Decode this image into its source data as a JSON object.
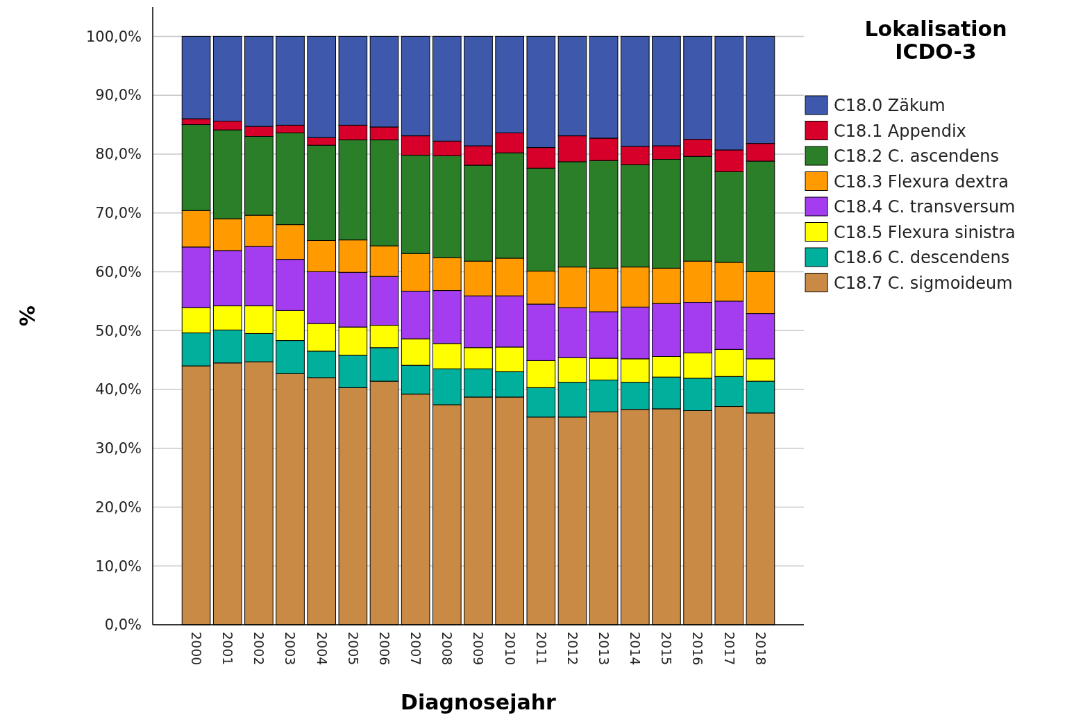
{
  "chart_data": {
    "type": "bar",
    "stacked": true,
    "xlabel": "Diagnosejahr",
    "ylabel": "%",
    "legend_title": "Lokalisation\nICDO-3",
    "legend": "right",
    "grid": "y",
    "categories": [
      "2000",
      "2001",
      "2002",
      "2003",
      "2004",
      "2005",
      "2006",
      "2007",
      "2008",
      "2009",
      "2010",
      "2011",
      "2012",
      "2013",
      "2014",
      "2015",
      "2016",
      "2017",
      "2018"
    ],
    "ylim": [
      0,
      105
    ],
    "yticks": [
      {
        "value": 0,
        "label": "0,0%"
      },
      {
        "value": 10,
        "label": "10,0%"
      },
      {
        "value": 20,
        "label": "20,0%"
      },
      {
        "value": 30,
        "label": "30,0%"
      },
      {
        "value": 40,
        "label": "40,0%"
      },
      {
        "value": 50,
        "label": "50,0%"
      },
      {
        "value": 60,
        "label": "60,0%"
      },
      {
        "value": 70,
        "label": "70,0%"
      },
      {
        "value": 80,
        "label": "80,0%"
      },
      {
        "value": 90,
        "label": "90,0%"
      },
      {
        "value": 100,
        "label": "100,0%"
      }
    ],
    "series": [
      {
        "name": "C18.7 C. sigmoideum",
        "color": "#c98a45",
        "values": [
          44.0,
          44.5,
          44.7,
          42.7,
          42.0,
          40.3,
          41.4,
          39.2,
          37.4,
          38.7,
          38.7,
          35.3,
          35.3,
          36.2,
          36.6,
          36.7,
          36.4,
          37.1,
          36.0
        ]
      },
      {
        "name": "C18.6 C. descendens",
        "color": "#00b09c",
        "values": [
          5.6,
          5.6,
          4.8,
          5.6,
          4.5,
          5.5,
          5.7,
          4.9,
          6.1,
          4.8,
          4.3,
          5.0,
          5.9,
          5.4,
          4.6,
          5.4,
          5.5,
          5.1,
          5.4
        ]
      },
      {
        "name": "C18.5 Flexura sinistra",
        "color": "#ffff00",
        "values": [
          4.3,
          4.1,
          4.7,
          5.1,
          4.7,
          4.8,
          3.8,
          4.5,
          4.3,
          3.6,
          4.2,
          4.6,
          4.2,
          3.7,
          4.0,
          3.5,
          4.3,
          4.6,
          3.8
        ]
      },
      {
        "name": "C18.4 C. transversum",
        "color": "#a43cf0",
        "values": [
          10.3,
          9.4,
          10.1,
          8.7,
          8.8,
          9.3,
          8.3,
          8.1,
          9.0,
          8.8,
          8.7,
          9.6,
          8.5,
          7.9,
          8.8,
          9.0,
          8.6,
          8.2,
          7.7
        ]
      },
      {
        "name": "C18.3 Flexura dextra",
        "color": "#ff9a00",
        "values": [
          6.2,
          5.4,
          5.3,
          5.9,
          5.3,
          5.5,
          5.2,
          6.4,
          5.6,
          5.9,
          6.4,
          5.6,
          6.9,
          7.4,
          6.8,
          6.0,
          7.0,
          6.6,
          7.1
        ]
      },
      {
        "name": "C18.2 C. ascendens",
        "color": "#2a7f28",
        "values": [
          14.6,
          15.1,
          13.4,
          15.6,
          16.2,
          17.0,
          18.0,
          16.7,
          17.3,
          16.3,
          17.9,
          17.5,
          17.9,
          18.3,
          17.4,
          18.5,
          17.8,
          15.4,
          18.8
        ]
      },
      {
        "name": "C18.1 Appendix",
        "color": "#d6002a",
        "values": [
          1.0,
          1.5,
          1.7,
          1.3,
          1.3,
          2.5,
          2.2,
          3.3,
          2.5,
          3.3,
          3.4,
          3.5,
          4.4,
          3.8,
          3.1,
          2.3,
          2.9,
          3.7,
          3.0
        ]
      },
      {
        "name": "C18.0 Zäkum",
        "color": "#3e58ac",
        "values": [
          14.0,
          14.4,
          15.3,
          15.1,
          17.2,
          15.1,
          15.4,
          16.9,
          17.8,
          18.6,
          16.4,
          18.9,
          16.9,
          17.3,
          18.7,
          18.6,
          17.5,
          19.3,
          18.2
        ]
      }
    ]
  }
}
